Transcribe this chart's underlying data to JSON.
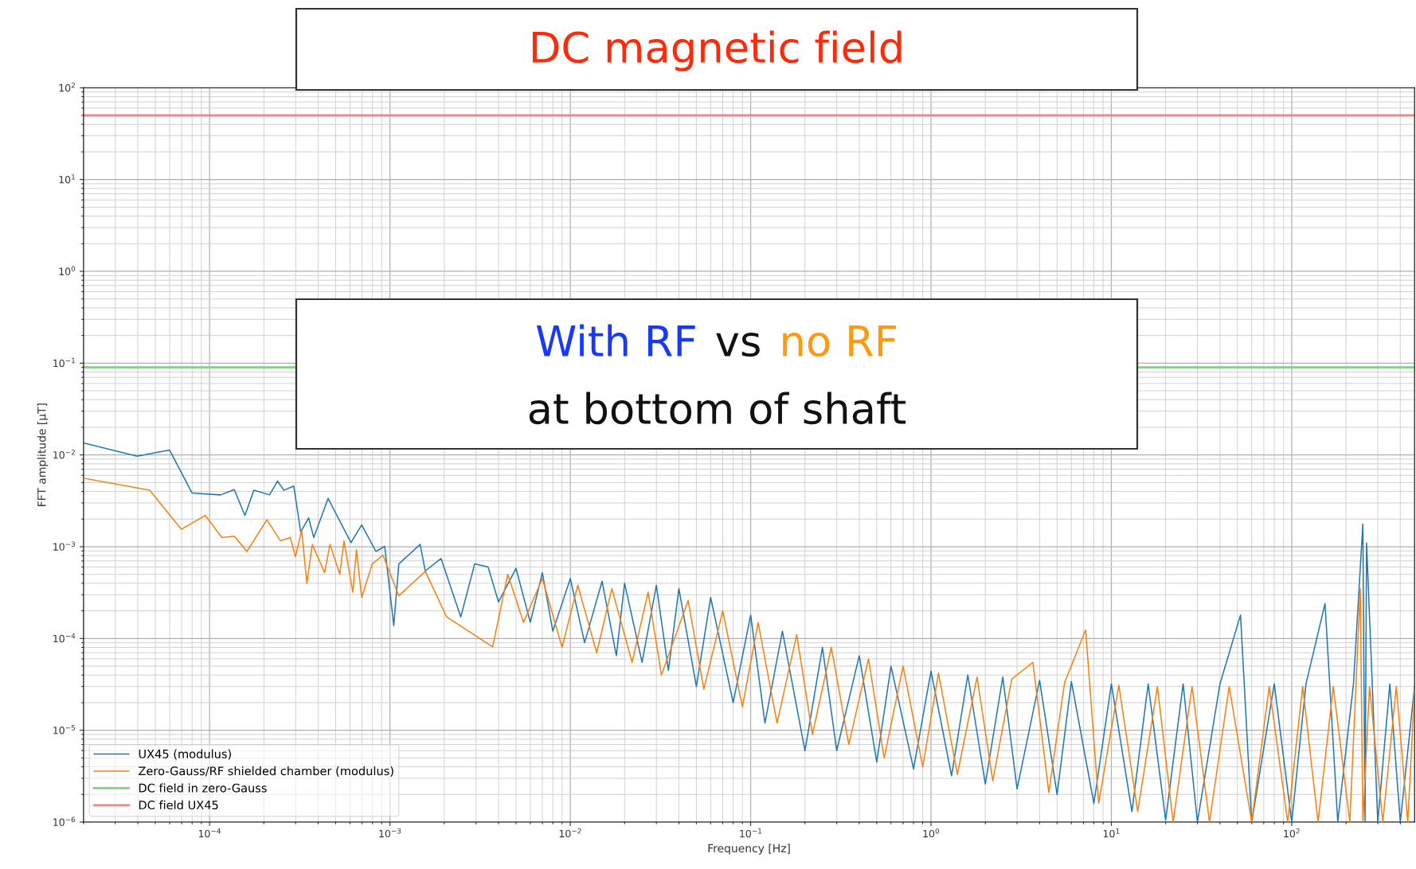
{
  "chart_data": {
    "type": "line",
    "title": "DC magnetic field",
    "xlabel": "Frequency [Hz]",
    "ylabel": "FFT amplitude [μT]",
    "annotations": [
      "With RF",
      "vs",
      "no RF",
      "at bottom of shaft"
    ],
    "log": "xy",
    "grid": true,
    "legend": "bottom left",
    "marker": "none",
    "line_style": "solid",
    "xlim": [
      2e-05,
      480
    ],
    "xticks": [
      {
        "value": 0.0001,
        "label": "10$^{−4}$"
      },
      {
        "value": 0.001,
        "label": "10$^{−3}$"
      },
      {
        "value": 0.01,
        "label": "10$^{−2}$"
      },
      {
        "value": 0.1,
        "label": "10$^{−1}$"
      },
      {
        "value": 1,
        "label": "10$^{0}$"
      },
      {
        "value": 10,
        "label": "10$^{1}$"
      },
      {
        "value": 100,
        "label": "10$^{2}$"
      }
    ],
    "ylim": [
      1e-06,
      100
    ],
    "yticks": [
      {
        "value": 1e-06,
        "label": "10$^{−6}$"
      },
      {
        "value": 1e-05,
        "label": "10$^{−5}$"
      },
      {
        "value": 0.0001,
        "label": "10$^{−4}$"
      },
      {
        "value": 0.001,
        "label": "10$^{−3}$"
      },
      {
        "value": 0.01,
        "label": "10$^{−2}$"
      },
      {
        "value": 0.1,
        "label": "10$^{−1}$"
      },
      {
        "value": 1,
        "label": "10$^{0}$"
      },
      {
        "value": 10,
        "label": "10$^{1}$"
      },
      {
        "value": 100,
        "label": "10$^{2}$"
      }
    ],
    "ref_lines": [
      {
        "axis": "y",
        "value": 0.09,
        "label": "DC field in zero-Gauss",
        "color": "#86cf86"
      },
      {
        "axis": "y",
        "value": 50,
        "label": "DC field UX45",
        "color": "#ea8a8a"
      }
    ],
    "series": [
      {
        "name": "UX45 (modulus)",
        "color": "#1f77b4",
        "x": [
          2.01e-05,
          3.96e-05,
          6e-05,
          8e-05,
          0.000115,
          0.000137,
          0.000157,
          0.000176,
          0.000215,
          0.000238,
          0.000258,
          0.000293,
          0.00032,
          0.000354,
          0.000378,
          0.000454,
          0.000608,
          0.000697,
          0.000836,
          0.000935,
          0.00105,
          0.00112,
          0.00147,
          0.00157,
          0.00192,
          0.00247,
          0.00295,
          0.0035,
          0.004,
          0.005,
          0.006,
          0.007,
          0.008,
          0.01,
          0.012,
          0.015,
          0.018,
          0.02,
          0.025,
          0.03,
          0.035,
          0.04,
          0.05,
          0.06,
          0.08,
          0.1,
          0.12,
          0.15,
          0.2,
          0.25,
          0.3,
          0.4,
          0.5,
          0.6,
          0.8,
          1,
          1.3,
          1.6,
          2,
          2.5,
          3,
          4,
          5,
          6,
          8,
          10,
          13,
          16,
          20,
          25,
          30,
          40,
          52,
          60,
          80,
          100,
          120,
          153,
          180,
          220,
          248,
          255,
          260,
          300,
          350,
          400,
          480
        ],
        "values": [
          0.0135,
          0.0097,
          0.0113,
          0.00384,
          0.00367,
          0.00419,
          0.00219,
          0.00412,
          0.00367,
          0.00519,
          0.00412,
          0.00458,
          0.00145,
          0.00206,
          0.00126,
          0.00336,
          0.00111,
          0.00173,
          0.000887,
          0.00101,
          0.000138,
          0.00065,
          0.00106,
          0.000544,
          0.000743,
          0.000172,
          0.00065,
          0.0006,
          0.00025,
          0.00058,
          0.00015,
          0.00052,
          0.00012,
          0.00045,
          9e-05,
          0.00042,
          6.5e-05,
          0.0004,
          5.5e-05,
          0.00038,
          4.5e-05,
          0.00035,
          3e-05,
          0.00028,
          2e-05,
          0.00018,
          1.2e-05,
          0.00012,
          6e-06,
          8e-05,
          6e-06,
          6.5e-05,
          4.5e-06,
          5e-05,
          3.8e-06,
          4.4e-05,
          3.2e-06,
          4e-05,
          2.6e-06,
          3.8e-05,
          2.3e-06,
          3.5e-05,
          2e-06,
          3.4e-05,
          1.6e-06,
          3.2e-05,
          1.3e-06,
          3.2e-05,
          1.05e-06,
          3.2e-05,
          1e-06,
          3.2e-05,
          0.00018,
          1e-06,
          3.2e-05,
          1e-06,
          3.2e-05,
          0.00024,
          1e-06,
          3.2e-05,
          0.00177,
          1e-06,
          0.0011,
          1e-06,
          3.2e-05,
          1e-06,
          3e-05
        ]
      },
      {
        "name": "Zero-Gauss/RF shielded chamber (modulus)",
        "color": "#ff7f0e",
        "x": [
          2.01e-05,
          4.65e-05,
          6.97e-05,
          9.46e-05,
          0.000117,
          0.000137,
          0.000161,
          0.000208,
          0.000247,
          0.00028,
          0.000299,
          0.000324,
          0.000346,
          0.000371,
          0.000434,
          0.000465,
          0.000527,
          0.000556,
          0.000622,
          0.000652,
          0.000697,
          0.000798,
          0.000914,
          0.00112,
          0.00157,
          0.00206,
          0.00371,
          0.0045,
          0.0055,
          0.007,
          0.009,
          0.011,
          0.014,
          0.017,
          0.022,
          0.027,
          0.032,
          0.045,
          0.055,
          0.07,
          0.09,
          0.11,
          0.14,
          0.18,
          0.22,
          0.28,
          0.35,
          0.45,
          0.55,
          0.7,
          0.9,
          1.1,
          1.4,
          1.8,
          2.2,
          2.8,
          3.67,
          4.5,
          5.5,
          7.2,
          8.5,
          11,
          14,
          18,
          22,
          28,
          35,
          45,
          60,
          75,
          95,
          115,
          140,
          170,
          210,
          240,
          248,
          270,
          320,
          380,
          440,
          480
        ],
        "values": [
          0.00557,
          0.00412,
          0.00155,
          0.00219,
          0.00126,
          0.0013,
          0.000887,
          0.00197,
          0.00116,
          0.00126,
          0.000776,
          0.00151,
          0.000399,
          0.00106,
          0.000521,
          0.00106,
          0.000499,
          0.00116,
          0.00032,
          0.000927,
          0.00028,
          0.00065,
          0.00081,
          0.000292,
          0.00054,
          0.000172,
          8.1e-05,
          0.0005,
          0.00015,
          0.00045,
          8e-05,
          0.00038,
          7e-05,
          0.00035,
          5.5e-05,
          0.00032,
          4e-05,
          0.00026,
          2.8e-05,
          0.0002,
          1.8e-05,
          0.00015,
          1.2e-05,
          0.00011,
          9e-06,
          8e-05,
          7e-06,
          6e-05,
          5e-06,
          5e-05,
          4e-06,
          4.2e-05,
          3.3e-06,
          3.8e-05,
          2.8e-06,
          3.6e-05,
          5.5e-05,
          2.1e-06,
          3.3e-05,
          0.000124,
          1.6e-06,
          3.1e-05,
          1.3e-06,
          3e-05,
          1e-06,
          3e-05,
          1e-06,
          3e-05,
          1e-06,
          3e-05,
          1e-06,
          3e-05,
          1e-06,
          3e-05,
          1e-06,
          0.00035,
          1e-06,
          3e-05,
          1e-06,
          3e-05,
          1e-06,
          2.8e-05
        ]
      }
    ]
  }
}
